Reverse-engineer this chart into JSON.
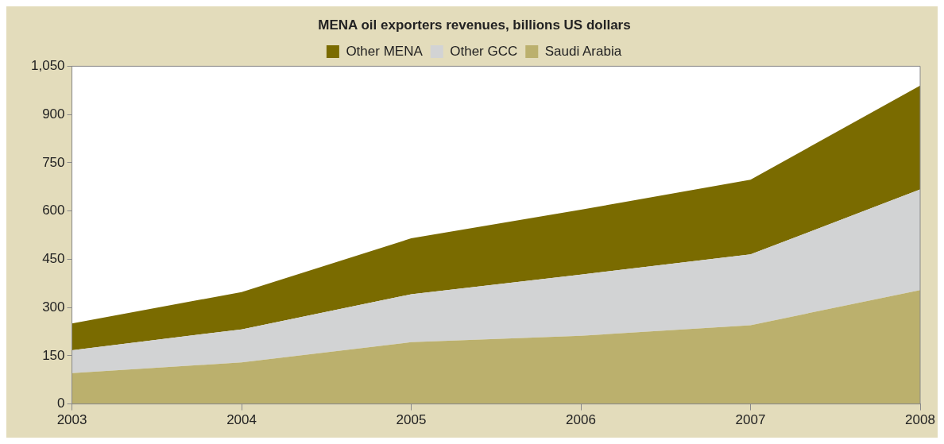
{
  "chart_data": {
    "type": "area",
    "title": "MENA oil exporters revenues, billions US dollars",
    "stacked": true,
    "legend": "top",
    "x": [
      2003,
      2004,
      2005,
      2006,
      2007,
      2008
    ],
    "xlim": [
      2003,
      2008
    ],
    "xticks": [
      2003,
      2004,
      2005,
      2006,
      2007,
      2008
    ],
    "ylim": [
      0,
      1050
    ],
    "yticks": [
      0,
      150,
      300,
      450,
      600,
      750,
      900,
      {
        "value": 1050,
        "label": "1,050"
      }
    ],
    "series": [
      {
        "name": "Saudi Arabia",
        "color": "#bbb06d",
        "values": [
          96,
          129,
          192,
          212,
          245,
          354
        ]
      },
      {
        "name": "Other GCC",
        "color": "#d2d3d4",
        "values": [
          71,
          103,
          149,
          190,
          220,
          313
        ]
      },
      {
        "name": "Other MENA",
        "color": "#7a6b00",
        "values": [
          83,
          116,
          174,
          202,
          232,
          323
        ]
      }
    ]
  }
}
